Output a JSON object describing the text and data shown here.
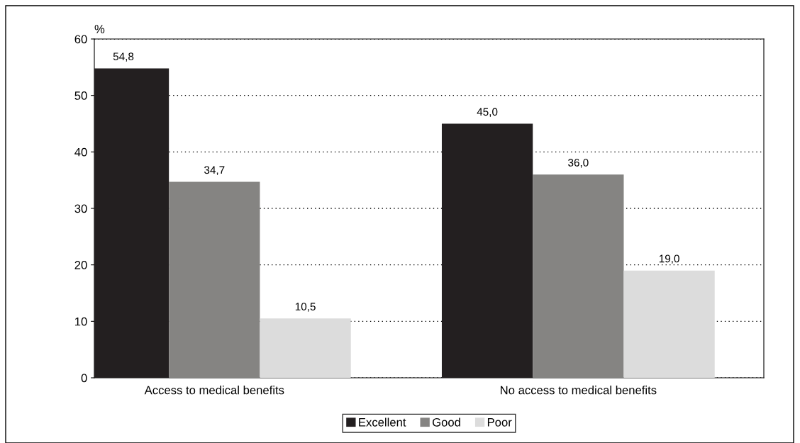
{
  "chart_data": {
    "type": "bar",
    "ylabel": "%",
    "categories": [
      "Access to medical benefits",
      "No access to medical benefits"
    ],
    "series": [
      {
        "name": "Excellent",
        "color": "#231f20",
        "values": [
          54.8,
          45.0
        ],
        "value_labels": [
          "54,8",
          "45,0"
        ]
      },
      {
        "name": "Good",
        "color": "#858482",
        "values": [
          34.7,
          36.0
        ],
        "value_labels": [
          "34,7",
          "36,0"
        ]
      },
      {
        "name": "Poor",
        "color": "#dcdcdc",
        "values": [
          10.5,
          19.0
        ],
        "value_labels": [
          "10,5",
          "19,0"
        ]
      }
    ],
    "ylim": [
      0,
      60
    ],
    "yticks": [
      0,
      10,
      20,
      30,
      40,
      50,
      60
    ],
    "grid": "y",
    "legend": "bottom"
  }
}
